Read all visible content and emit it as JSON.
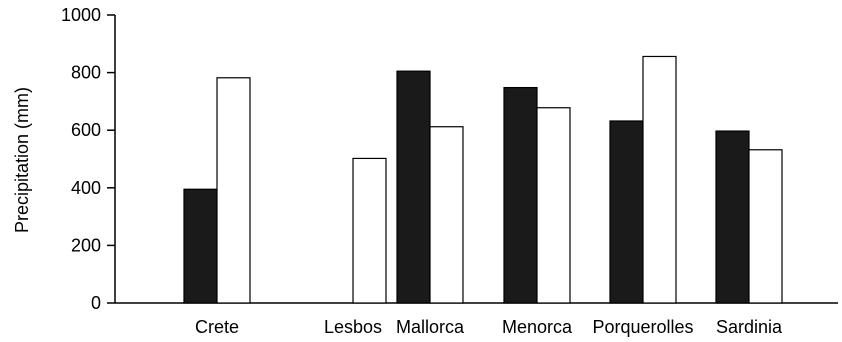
{
  "chart_data": {
    "type": "bar",
    "title": "",
    "xlabel": "",
    "ylabel": "Precipitation (mm)",
    "ylim": [
      0,
      1000
    ],
    "yticks": [
      "0",
      "200",
      "400",
      "600",
      "800",
      "1000"
    ],
    "categories": [
      "Crete",
      "Lesbos",
      "Mallorca",
      "Menorca",
      "Porquerolles",
      "Sardinia"
    ],
    "series": [
      {
        "values": [
          395,
          0,
          805,
          748,
          632,
          597
        ],
        "color": "#1a1a1a"
      },
      {
        "values": [
          782,
          502,
          612,
          678,
          856,
          532
        ],
        "color": "#ffffff"
      }
    ],
    "grid": false,
    "legend": "none"
  }
}
